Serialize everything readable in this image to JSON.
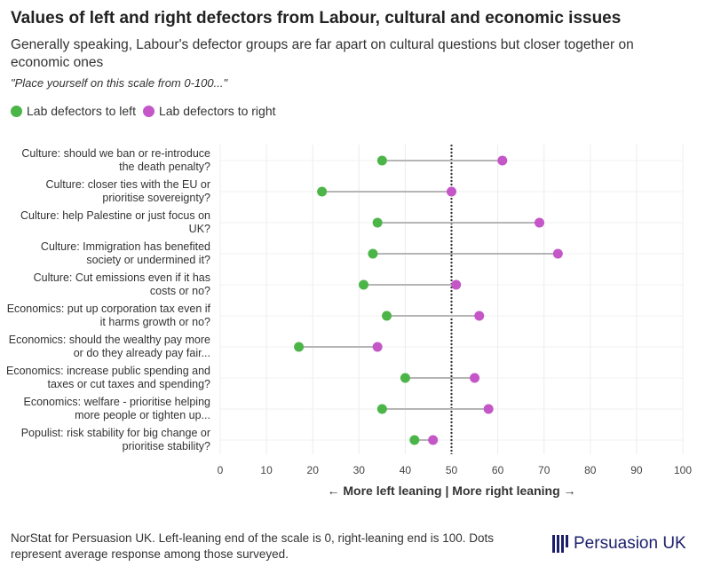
{
  "chart_data": {
    "type": "dumbbell",
    "title": "Values of left and right defectors from Labour, cultural and economic issues",
    "subtitle": "Generally speaking, Labour's defector groups are far apart on cultural questions but closer together on economic ones",
    "note": "\"Place yourself on this scale from 0-100...\"",
    "xlabel": "← More left leaning | More right leaning →",
    "xlim": [
      0,
      100
    ],
    "xticks": [
      "0",
      "10",
      "20",
      "30",
      "40",
      "50",
      "60",
      "70",
      "80",
      "90",
      "100"
    ],
    "reference_line": 50,
    "categories": [
      "Culture: should we ban or re-introduce the death penalty?",
      "Culture: closer ties with the EU or prioritise sovereignty?",
      "Culture: help Palestine or just focus on UK?",
      "Culture: Immigration has benefited society or undermined it?",
      "Culture: Cut emissions even if it has costs or no?",
      "Economics: put up corporation tax even if it harms growth or no?",
      "Economics: should the wealthy pay more or do they already pay fair...",
      "Economics: increase public spending and taxes or cut taxes and spending?",
      "Economics: welfare - prioritise helping more people or tighten up...",
      "Populist: risk stability for big change or prioritise stability?"
    ],
    "series": [
      {
        "name": "Lab defectors to left",
        "color": "#4cb548",
        "values": [
          35,
          22,
          34,
          33,
          31,
          36,
          17,
          40,
          35,
          42
        ]
      },
      {
        "name": "Lab defectors to right",
        "color": "#c456c8",
        "values": [
          61,
          50,
          69,
          73,
          51,
          56,
          34,
          55,
          58,
          46
        ]
      }
    ],
    "legend": "top-left"
  },
  "footer": {
    "source": "NorStat for Persuasion UK. Left-leaning end of the scale is 0, right-leaning end is 100. Dots represent average response among those surveyed.",
    "logo": "Persuasion UK"
  }
}
